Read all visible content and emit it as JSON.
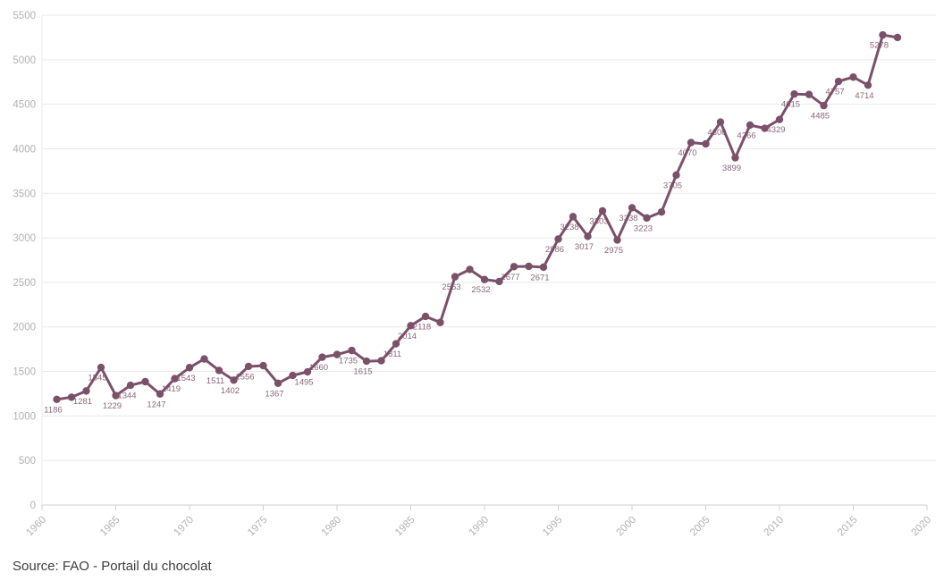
{
  "source": {
    "text": "Source: FAO - Portail du chocolat"
  },
  "chart_data": {
    "type": "line",
    "title": "",
    "xlabel": "",
    "ylabel": "",
    "legend": "none",
    "grid": "horizontal",
    "line_color": "#7b5169",
    "axis_label_color": "#b2b2b2",
    "grid_color": "#e9e9e9",
    "axis_line_color": "#cfcfcf",
    "xlim": [
      1960,
      2020
    ],
    "ylim": [
      0,
      5500
    ],
    "y_ticks": [
      0,
      500,
      1000,
      1500,
      2000,
      2500,
      3000,
      3500,
      4000,
      4500,
      5000,
      5500
    ],
    "x_ticks": [
      1960,
      1965,
      1970,
      1975,
      1980,
      1985,
      1990,
      1995,
      2000,
      2005,
      2010,
      2015,
      2020
    ],
    "points": [
      {
        "year": 1961,
        "value": 1186,
        "label": "1186"
      },
      {
        "year": 1962,
        "value": 1210,
        "label": null
      },
      {
        "year": 1963,
        "value": 1281,
        "label": "1281"
      },
      {
        "year": 1964,
        "value": 1545,
        "label": "1545"
      },
      {
        "year": 1965,
        "value": 1229,
        "label": "1229"
      },
      {
        "year": 1966,
        "value": 1344,
        "label": "1344"
      },
      {
        "year": 1967,
        "value": 1385,
        "label": null
      },
      {
        "year": 1968,
        "value": 1247,
        "label": "1247"
      },
      {
        "year": 1969,
        "value": 1419,
        "label": "1419"
      },
      {
        "year": 1970,
        "value": 1543,
        "label": "1543"
      },
      {
        "year": 1971,
        "value": 1640,
        "label": null
      },
      {
        "year": 1972,
        "value": 1511,
        "label": "1511"
      },
      {
        "year": 1973,
        "value": 1402,
        "label": "1402"
      },
      {
        "year": 1974,
        "value": 1556,
        "label": "1556"
      },
      {
        "year": 1975,
        "value": 1565,
        "label": null
      },
      {
        "year": 1976,
        "value": 1367,
        "label": "1367"
      },
      {
        "year": 1977,
        "value": 1455,
        "label": null
      },
      {
        "year": 1978,
        "value": 1495,
        "label": "1495"
      },
      {
        "year": 1979,
        "value": 1660,
        "label": "1660"
      },
      {
        "year": 1980,
        "value": 1690,
        "label": null
      },
      {
        "year": 1981,
        "value": 1735,
        "label": "1735"
      },
      {
        "year": 1982,
        "value": 1615,
        "label": "1615"
      },
      {
        "year": 1983,
        "value": 1620,
        "label": null
      },
      {
        "year": 1984,
        "value": 1811,
        "label": "1811"
      },
      {
        "year": 1985,
        "value": 2014,
        "label": "2014"
      },
      {
        "year": 1986,
        "value": 2118,
        "label": "2118"
      },
      {
        "year": 1987,
        "value": 2050,
        "label": null
      },
      {
        "year": 1988,
        "value": 2563,
        "label": "2563"
      },
      {
        "year": 1989,
        "value": 2645,
        "label": null
      },
      {
        "year": 1990,
        "value": 2532,
        "label": "2532"
      },
      {
        "year": 1991,
        "value": 2510,
        "label": null
      },
      {
        "year": 1992,
        "value": 2677,
        "label": "2677"
      },
      {
        "year": 1993,
        "value": 2680,
        "label": null
      },
      {
        "year": 1994,
        "value": 2671,
        "label": "2671"
      },
      {
        "year": 1995,
        "value": 2986,
        "label": "2986"
      },
      {
        "year": 1996,
        "value": 3238,
        "label": "3238"
      },
      {
        "year": 1997,
        "value": 3017,
        "label": "3017"
      },
      {
        "year": 1998,
        "value": 3303,
        "label": "3303"
      },
      {
        "year": 1999,
        "value": 2975,
        "label": "2975"
      },
      {
        "year": 2000,
        "value": 3338,
        "label": "3338"
      },
      {
        "year": 2001,
        "value": 3223,
        "label": "3223"
      },
      {
        "year": 2002,
        "value": 3290,
        "label": null
      },
      {
        "year": 2003,
        "value": 3705,
        "label": "3705"
      },
      {
        "year": 2004,
        "value": 4070,
        "label": "4070"
      },
      {
        "year": 2005,
        "value": 4055,
        "label": null
      },
      {
        "year": 2006,
        "value": 4300,
        "label": "4300"
      },
      {
        "year": 2007,
        "value": 3899,
        "label": "3899"
      },
      {
        "year": 2008,
        "value": 4266,
        "label": "4266"
      },
      {
        "year": 2009,
        "value": 4230,
        "label": null
      },
      {
        "year": 2010,
        "value": 4329,
        "label": "4329"
      },
      {
        "year": 2011,
        "value": 4615,
        "label": "4615"
      },
      {
        "year": 2012,
        "value": 4610,
        "label": null
      },
      {
        "year": 2013,
        "value": 4485,
        "label": "4485"
      },
      {
        "year": 2014,
        "value": 4757,
        "label": "4757"
      },
      {
        "year": 2015,
        "value": 4805,
        "label": null
      },
      {
        "year": 2016,
        "value": 4714,
        "label": "4714"
      },
      {
        "year": 2017,
        "value": 5278,
        "label": "5278"
      },
      {
        "year": 2018,
        "value": 5250,
        "label": null
      }
    ]
  }
}
